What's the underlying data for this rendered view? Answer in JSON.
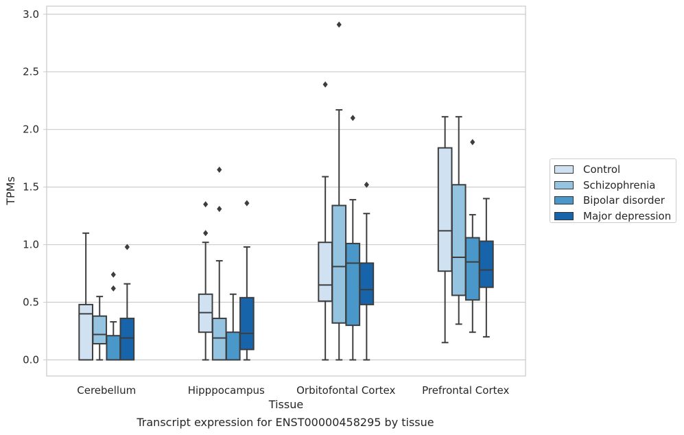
{
  "chart_data": {
    "type": "box",
    "xlabel": "Tissue",
    "ylabel": "TPMs",
    "categories": [
      "Cerebellum",
      "Hipppocampus",
      "Orbitofontal Cortex",
      "Prefrontal Cortex"
    ],
    "ylim": [
      -0.14,
      3.07
    ],
    "yticks": [
      "0.0",
      "0.5",
      "1.0",
      "1.5",
      "2.0",
      "2.5",
      "3.0"
    ],
    "grid": "horizontal",
    "legend_position": "right",
    "series": [
      {
        "name": "Control",
        "color": "#d0e1f2",
        "boxes": [
          {
            "whisker_low": 0.0,
            "q1": 0.0,
            "median": 0.4,
            "q3": 0.48,
            "whisker_high": 1.1,
            "outliers": []
          },
          {
            "whisker_low": 0.0,
            "q1": 0.24,
            "median": 0.41,
            "q3": 0.57,
            "whisker_high": 1.02,
            "outliers": [
              1.1,
              1.35
            ]
          },
          {
            "whisker_low": 0.0,
            "q1": 0.51,
            "median": 0.65,
            "q3": 1.02,
            "whisker_high": 1.59,
            "outliers": [
              2.39
            ]
          },
          {
            "whisker_low": 0.15,
            "q1": 0.77,
            "median": 1.12,
            "q3": 1.84,
            "whisker_high": 2.11,
            "outliers": []
          }
        ]
      },
      {
        "name": "Schizophrenia",
        "color": "#94c4df",
        "boxes": [
          {
            "whisker_low": 0.0,
            "q1": 0.14,
            "median": 0.22,
            "q3": 0.38,
            "whisker_high": 0.55,
            "outliers": []
          },
          {
            "whisker_low": 0.0,
            "q1": 0.0,
            "median": 0.19,
            "q3": 0.36,
            "whisker_high": 0.86,
            "outliers": [
              1.31,
              1.65
            ]
          },
          {
            "whisker_low": 0.0,
            "q1": 0.32,
            "median": 0.81,
            "q3": 1.34,
            "whisker_high": 2.17,
            "outliers": [
              2.91
            ]
          },
          {
            "whisker_low": 0.31,
            "q1": 0.56,
            "median": 0.89,
            "q3": 1.52,
            "whisker_high": 2.11,
            "outliers": []
          }
        ]
      },
      {
        "name": "Bipolar disorder",
        "color": "#4a98c9",
        "boxes": [
          {
            "whisker_low": 0.0,
            "q1": 0.0,
            "median": 0.0,
            "q3": 0.21,
            "whisker_high": 0.33,
            "outliers": [
              0.62,
              0.74
            ]
          },
          {
            "whisker_low": 0.0,
            "q1": 0.0,
            "median": 0.0,
            "q3": 0.24,
            "whisker_high": 0.57,
            "outliers": []
          },
          {
            "whisker_low": 0.0,
            "q1": 0.3,
            "median": 0.84,
            "q3": 1.01,
            "whisker_high": 1.39,
            "outliers": [
              2.1
            ]
          },
          {
            "whisker_low": 0.24,
            "q1": 0.52,
            "median": 0.85,
            "q3": 1.06,
            "whisker_high": 1.26,
            "outliers": [
              1.89
            ]
          }
        ]
      },
      {
        "name": "Major depression",
        "color": "#1764ab",
        "boxes": [
          {
            "whisker_low": 0.0,
            "q1": 0.0,
            "median": 0.19,
            "q3": 0.36,
            "whisker_high": 0.66,
            "outliers": [
              0.98
            ]
          },
          {
            "whisker_low": 0.0,
            "q1": 0.09,
            "median": 0.23,
            "q3": 0.54,
            "whisker_high": 0.98,
            "outliers": [
              1.36
            ]
          },
          {
            "whisker_low": 0.0,
            "q1": 0.48,
            "median": 0.61,
            "q3": 0.84,
            "whisker_high": 1.27,
            "outliers": [
              1.52
            ]
          },
          {
            "whisker_low": 0.2,
            "q1": 0.63,
            "median": 0.78,
            "q3": 1.03,
            "whisker_high": 1.4,
            "outliers": []
          }
        ]
      }
    ]
  },
  "caption": "Transcript expression for ENST00000458295 by tissue"
}
